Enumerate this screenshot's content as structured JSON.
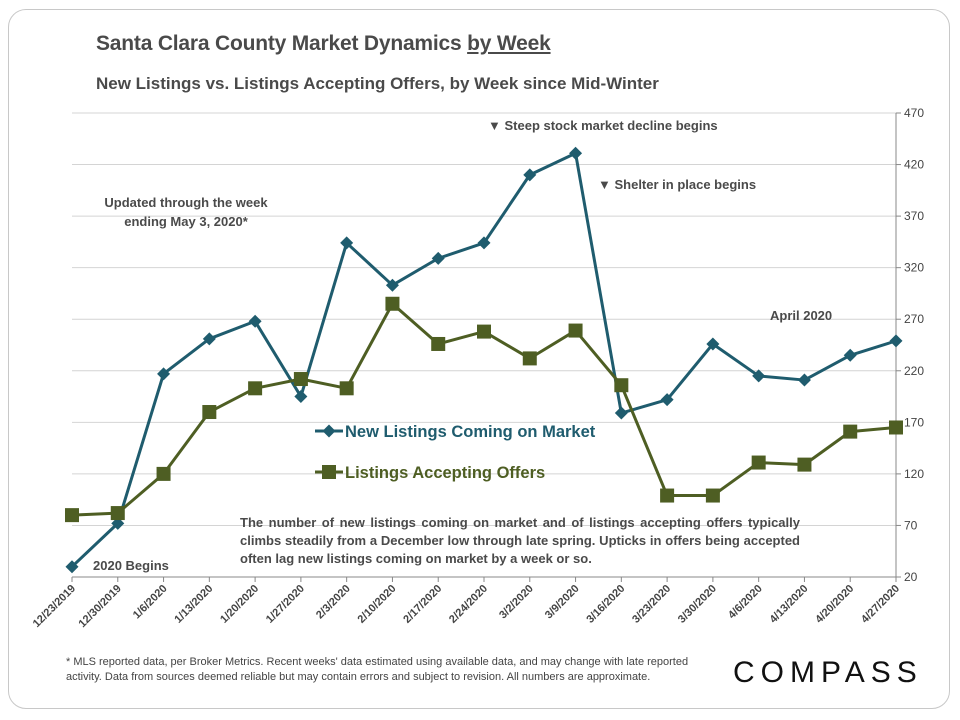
{
  "header": {
    "title_main": "Santa Clara County Market Dynamics ",
    "title_underlined": "by Week",
    "subtitle": "New Listings vs. Listings Accepting Offers, by Week since Mid-Winter"
  },
  "annotations": {
    "updated": "Updated through the week ending May 3, 2020*",
    "stock_decline": "▼ Steep stock market decline begins",
    "shelter": "▼ Shelter in place begins",
    "april": "April 2020",
    "begins": "2020 Begins",
    "note": "The number of new listings coming on market and of listings accepting offers typically climbs steadily from a December low through late spring. Upticks in offers being accepted often lag new listings coming on market by a week or so."
  },
  "footer": {
    "footnote": "* MLS reported data, per Broker Metrics. Recent weeks' data estimated using available data, and may change with late reported activity. Data from sources deemed reliable but may contain errors and subject to revision. All numbers are approximate.",
    "logo": "COMPASS"
  },
  "chart_data": {
    "type": "line",
    "categories": [
      "12/23/2019",
      "12/30/2019",
      "1/6/2020",
      "1/13/2020",
      "1/20/2020",
      "1/27/2020",
      "2/3/2020",
      "2/10/2020",
      "2/17/2020",
      "2/24/2020",
      "3/2/2020",
      "3/9/2020",
      "3/16/2020",
      "3/23/2020",
      "3/30/2020",
      "4/6/2020",
      "4/13/2020",
      "4/20/2020",
      "4/27/2020"
    ],
    "series": [
      {
        "name": "New Listings Coming on Market",
        "color": "#1f5c6e",
        "marker": "diamond",
        "values": [
          30,
          72,
          217,
          251,
          268,
          195,
          344,
          303,
          329,
          344,
          410,
          431,
          179,
          192,
          246,
          215,
          211,
          235,
          249
        ]
      },
      {
        "name": "Listings Accepting Offers",
        "color": "#4e5e23",
        "marker": "square",
        "values": [
          80,
          82,
          120,
          180,
          203,
          212,
          203,
          285,
          246,
          258,
          232,
          259,
          206,
          99,
          99,
          131,
          129,
          161,
          165
        ]
      }
    ],
    "y_axis": {
      "position": "right",
      "ylim": [
        20,
        470
      ],
      "ticks": [
        20,
        70,
        120,
        170,
        220,
        270,
        320,
        370,
        420,
        470
      ]
    },
    "grid": true,
    "legend": "center"
  }
}
